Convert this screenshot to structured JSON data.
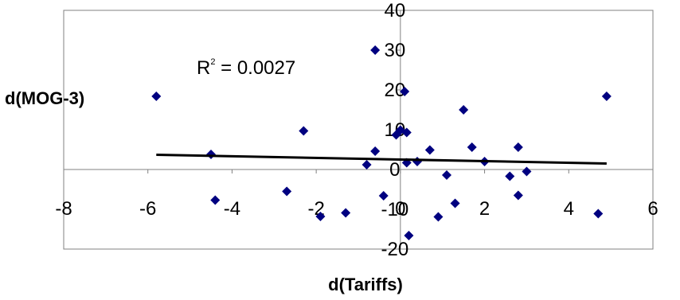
{
  "chart_data": {
    "type": "scatter",
    "xlabel": "d(Tariffs)",
    "ylabel": "d(MOG-3)",
    "xlim": [
      -8,
      6
    ],
    "ylim": [
      -20,
      40
    ],
    "xticks": [
      -8,
      -6,
      -4,
      -2,
      0,
      2,
      4,
      6
    ],
    "yticks": [
      -20,
      -10,
      0,
      10,
      20,
      30,
      40
    ],
    "annotation": {
      "base": "R",
      "exponent": "2",
      "value_text": " = 0.0027"
    },
    "trendline": {
      "x": [
        -5.8,
        4.9
      ],
      "y": [
        3.7,
        1.5
      ]
    },
    "marker_color": "#000080",
    "line_color": "#000000",
    "points": [
      {
        "x": -5.8,
        "y": 18.4
      },
      {
        "x": -4.5,
        "y": 3.8
      },
      {
        "x": -4.4,
        "y": -7.7
      },
      {
        "x": -2.3,
        "y": 9.7
      },
      {
        "x": -2.7,
        "y": -5.5
      },
      {
        "x": -1.9,
        "y": -11.8
      },
      {
        "x": -1.3,
        "y": -10.9
      },
      {
        "x": -0.8,
        "y": 1.2
      },
      {
        "x": -0.6,
        "y": 30.0
      },
      {
        "x": -0.6,
        "y": 4.6
      },
      {
        "x": -0.4,
        "y": -6.6
      },
      {
        "x": -0.1,
        "y": 8.7
      },
      {
        "x": 0.0,
        "y": 9.9
      },
      {
        "x": 0.1,
        "y": 19.6
      },
      {
        "x": 0.15,
        "y": 9.3
      },
      {
        "x": 0.15,
        "y": 1.7
      },
      {
        "x": 0.2,
        "y": -16.6
      },
      {
        "x": 0.4,
        "y": 2.0
      },
      {
        "x": 0.7,
        "y": 4.9
      },
      {
        "x": 0.9,
        "y": -11.9
      },
      {
        "x": 1.1,
        "y": -1.4
      },
      {
        "x": 1.3,
        "y": -8.5
      },
      {
        "x": 1.5,
        "y": 15.0
      },
      {
        "x": 1.7,
        "y": 5.6
      },
      {
        "x": 2.0,
        "y": 2.0
      },
      {
        "x": 2.6,
        "y": -1.7
      },
      {
        "x": 2.8,
        "y": 5.6
      },
      {
        "x": 2.8,
        "y": -6.5
      },
      {
        "x": 3.0,
        "y": -0.5
      },
      {
        "x": 4.7,
        "y": -11.1
      },
      {
        "x": 4.9,
        "y": 18.4
      }
    ]
  }
}
